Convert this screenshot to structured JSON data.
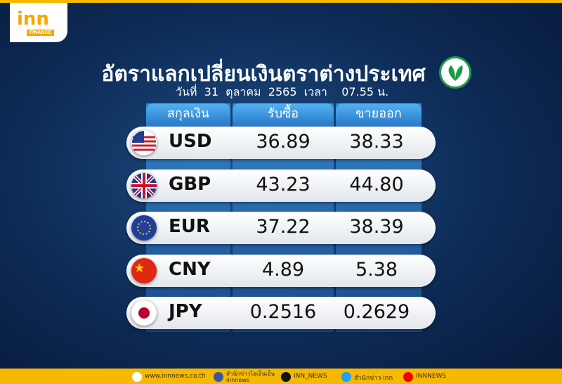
{
  "logo": {
    "name": "inn",
    "tag": "FINANCE"
  },
  "header": {
    "title": "อัตราแลกเปลี่ยนเงินตราต่างประเทศ",
    "subtitle": "วันที่  31  ตุลาคม  2565  เวลา    07.55 น."
  },
  "table": {
    "columns": [
      "สกุลเงิน",
      "รับซื้อ",
      "ขายออก"
    ],
    "rows": [
      [
        "USD",
        "36.89",
        "38.33"
      ],
      [
        "GBP",
        "43.23",
        "44.80"
      ],
      [
        "EUR",
        "37.22",
        "38.39"
      ],
      [
        "CNY",
        "4.89",
        "5.38"
      ],
      [
        "JPY",
        "0.2516",
        "0.2629"
      ]
    ]
  },
  "footer": {
    "website": "www.innnews.co.th",
    "facebook": "สำนักข่าวไอเอ็นเอ็น",
    "facebook_handle": "innnews",
    "tiktok": "INN_NEWS",
    "twitter": "สำนักข่าว inn",
    "youtube": "INNNEWS"
  }
}
